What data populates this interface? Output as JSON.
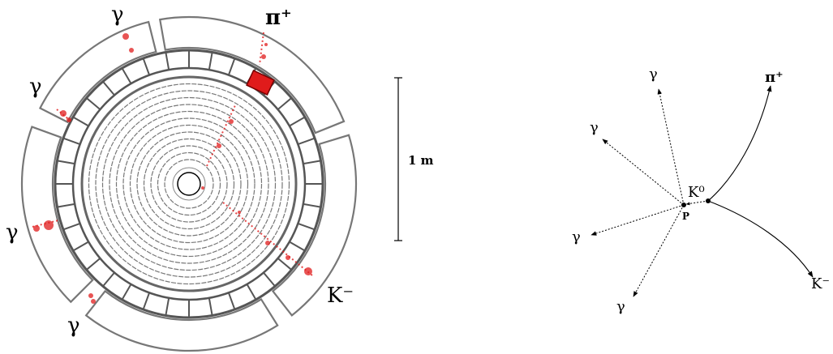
{
  "event_display": {
    "labels": {
      "gamma_top": "γ",
      "gamma_upper_left": "γ",
      "gamma_left": "γ",
      "gamma_bottom": "γ",
      "pi_plus": "π⁺",
      "k_minus": "K⁻"
    },
    "scale_bar_label": "1 m",
    "hit_color": "#e01b1b",
    "detector_color": "#777777"
  },
  "schematic": {
    "labels": {
      "gamma_1": "γ",
      "gamma_2": "γ",
      "gamma_3": "γ",
      "gamma_4": "γ",
      "pi_plus": "π⁺",
      "k_minus": "K⁻",
      "k_zero": "K⁰",
      "vertex_p": "P"
    },
    "line_color": "#000000"
  }
}
